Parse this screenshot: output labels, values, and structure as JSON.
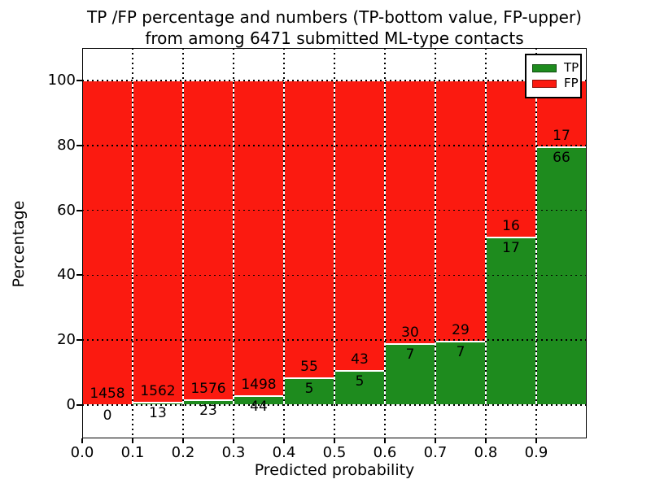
{
  "title": {
    "line1": "TP /FP percentage and numbers (TP-bottom value, FP-upper)",
    "line2": "from among 6471 submitted ML-type contacts"
  },
  "axes": {
    "xlabel": "Predicted probability",
    "ylabel": "Percentage",
    "x_tick_labels": [
      "0.0",
      "0.1",
      "0.2",
      "0.3",
      "0.4",
      "0.5",
      "0.6",
      "0.7",
      "0.8",
      "0.9"
    ],
    "y_tick_labels": [
      "0",
      "20",
      "40",
      "60",
      "80",
      "100"
    ],
    "y_tick_values": [
      0,
      20,
      40,
      60,
      80,
      100
    ]
  },
  "legend": {
    "items": [
      {
        "label": "TP",
        "color": "#1e8b1e"
      },
      {
        "label": "FP",
        "color": "#fb1a10"
      }
    ]
  },
  "colors": {
    "tp_green": "#1e8b1e",
    "fp_red": "#fb1a10",
    "bar_edge": "#ffffff",
    "grid": "#000000",
    "text": "#000000",
    "background": "#ffffff"
  },
  "chart_data": {
    "type": "bar",
    "stacked": true,
    "normalized_to_percent": true,
    "title": "TP /FP percentage and numbers (TP-bottom value, FP-upper) from among 6471 submitted ML-type contacts",
    "xlabel": "Predicted probability",
    "ylabel": "Percentage",
    "xlim": [
      0.0,
      1.0
    ],
    "ylim": [
      -11,
      110
    ],
    "grid": "dotted, both axes, drawn over bars",
    "legend_position": "upper right",
    "bin_edges": [
      0.0,
      0.1,
      0.2,
      0.3,
      0.4,
      0.5,
      0.6,
      0.7,
      0.8,
      0.9,
      1.0
    ],
    "categories": [
      "0.0-0.1",
      "0.1-0.2",
      "0.2-0.3",
      "0.3-0.4",
      "0.4-0.5",
      "0.5-0.6",
      "0.6-0.7",
      "0.7-0.8",
      "0.8-0.9",
      "0.9-1.0"
    ],
    "series": [
      {
        "name": "TP",
        "color": "#1e8b1e",
        "position": "bottom",
        "values": [
          0,
          13,
          23,
          44,
          5,
          5,
          7,
          7,
          17,
          66
        ]
      },
      {
        "name": "FP",
        "color": "#fb1a10",
        "position": "top",
        "values": [
          1458,
          1562,
          1576,
          1498,
          55,
          43,
          30,
          29,
          16,
          17
        ]
      }
    ],
    "bar_value_labels": "TP count printed just below TP/FP boundary, FP count just above it"
  }
}
